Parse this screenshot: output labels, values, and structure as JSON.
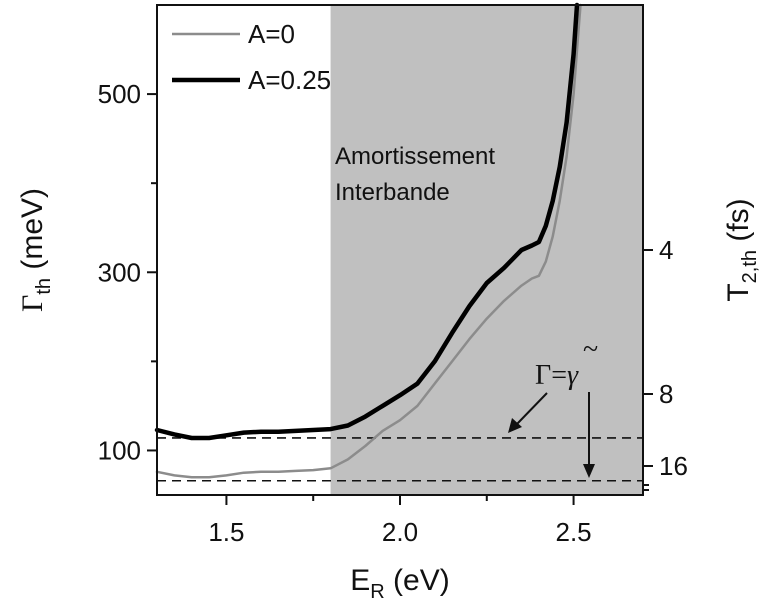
{
  "chart_data": {
    "type": "line",
    "x_axis": {
      "range": [
        1.3,
        2.7
      ],
      "ticks": [
        1.5,
        2.0,
        2.5
      ],
      "tick_labels": [
        "1.5",
        "2.0",
        "2.5"
      ],
      "minor_ticks": [
        1.75,
        2.25
      ],
      "label_main": "E",
      "label_sub": "R",
      "label_unit": " (eV)"
    },
    "y_axis_left": {
      "range": [
        50,
        600
      ],
      "ticks": [
        100,
        300,
        500
      ],
      "tick_labels": [
        "100",
        "300",
        "500"
      ],
      "minor_ticks": [
        200,
        400
      ],
      "label_main": "Γ",
      "label_sub": "th",
      "label_unit": " (meV)"
    },
    "y_axis_right": {
      "ticks": [
        4,
        8,
        16
      ],
      "tick_labels": [
        "4",
        "8",
        "16"
      ],
      "label_main": "T",
      "label_sub": "2,th",
      "label_unit": " (fs)"
    },
    "shaded_region": {
      "x_start": 1.8,
      "x_end": 2.7,
      "color": "#c0c0c0",
      "label_line1": "Amortissement",
      "label_line2": "Interbande"
    },
    "series": [
      {
        "name": "A=0",
        "color": "#8c8c8c",
        "width": 2.5,
        "x": [
          1.3,
          1.35,
          1.4,
          1.45,
          1.5,
          1.55,
          1.6,
          1.65,
          1.7,
          1.75,
          1.8,
          1.85,
          1.9,
          1.95,
          2.0,
          2.05,
          2.1,
          2.15,
          2.2,
          2.25,
          2.3,
          2.35,
          2.38,
          2.4,
          2.42,
          2.44,
          2.46,
          2.48,
          2.5,
          2.52
        ],
        "values": [
          76,
          72,
          70,
          70,
          72,
          75,
          76,
          76,
          77,
          78,
          80,
          90,
          105,
          122,
          134,
          150,
          175,
          200,
          225,
          248,
          268,
          285,
          293,
          296,
          312,
          340,
          380,
          430,
          500,
          600
        ]
      },
      {
        "name": "A=0.25",
        "color": "#000000",
        "width": 4.5,
        "x": [
          1.3,
          1.35,
          1.4,
          1.45,
          1.5,
          1.55,
          1.6,
          1.65,
          1.7,
          1.75,
          1.8,
          1.85,
          1.9,
          1.95,
          2.0,
          2.05,
          2.1,
          2.15,
          2.2,
          2.25,
          2.3,
          2.35,
          2.38,
          2.4,
          2.42,
          2.44,
          2.46,
          2.48,
          2.5,
          2.51
        ],
        "values": [
          123,
          118,
          114,
          114,
          117,
          120,
          121,
          121,
          122,
          123,
          124,
          128,
          138,
          150,
          162,
          175,
          200,
          232,
          262,
          288,
          305,
          325,
          330,
          334,
          352,
          380,
          418,
          468,
          545,
          600
        ]
      }
    ],
    "reference_lines": [
      {
        "y": 114,
        "style": "dashed"
      },
      {
        "y": 66,
        "style": "dashed"
      }
    ],
    "annotation": {
      "text_main": "Γ=",
      "text_symbol": "γ",
      "text_tilde": "~"
    },
    "legend": {
      "position": "top-left",
      "entries": [
        "A=0",
        "A=0.25"
      ]
    }
  }
}
